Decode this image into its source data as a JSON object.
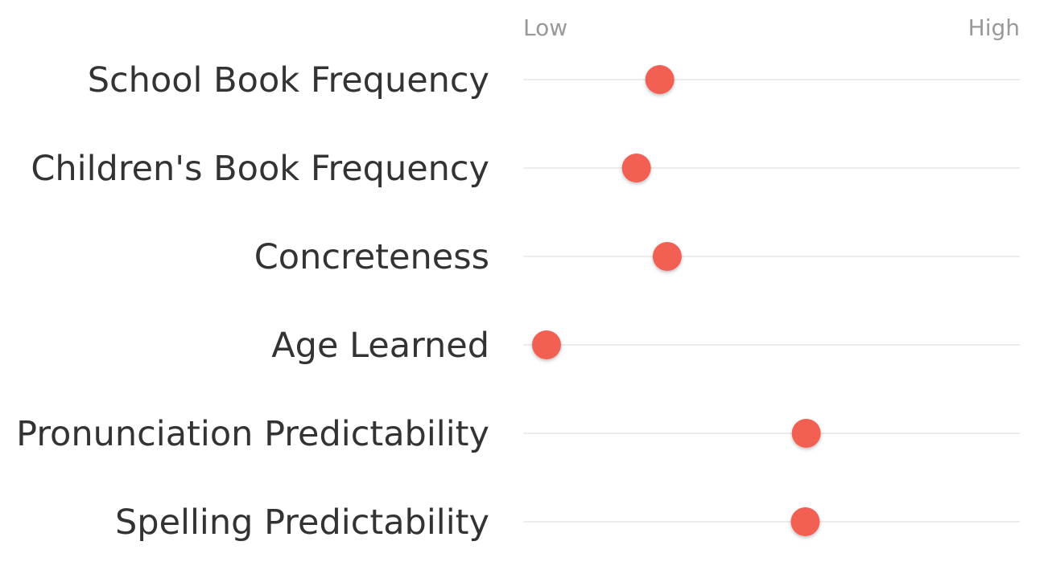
{
  "chart_data": {
    "type": "scatter",
    "title": "",
    "xlabel": "",
    "ylabel": "",
    "scale_labels": {
      "low": "Low",
      "high": "High"
    },
    "xlim": [
      0,
      1
    ],
    "grid": true,
    "legend": "none",
    "colors": {
      "point": "#f25f52",
      "track": "#d9d9d9",
      "label": "#333333",
      "scale_label": "#999999"
    },
    "rows": [
      {
        "label": "School Book Frequency",
        "value": 0.275
      },
      {
        "label": "Children's Book Frequency",
        "value": 0.228
      },
      {
        "label": "Concreteness",
        "value": 0.29
      },
      {
        "label": "Age Learned",
        "value": 0.047
      },
      {
        "label": "Pronunciation Predictability",
        "value": 0.57
      },
      {
        "label": "Spelling Predictability",
        "value": 0.568
      }
    ]
  }
}
